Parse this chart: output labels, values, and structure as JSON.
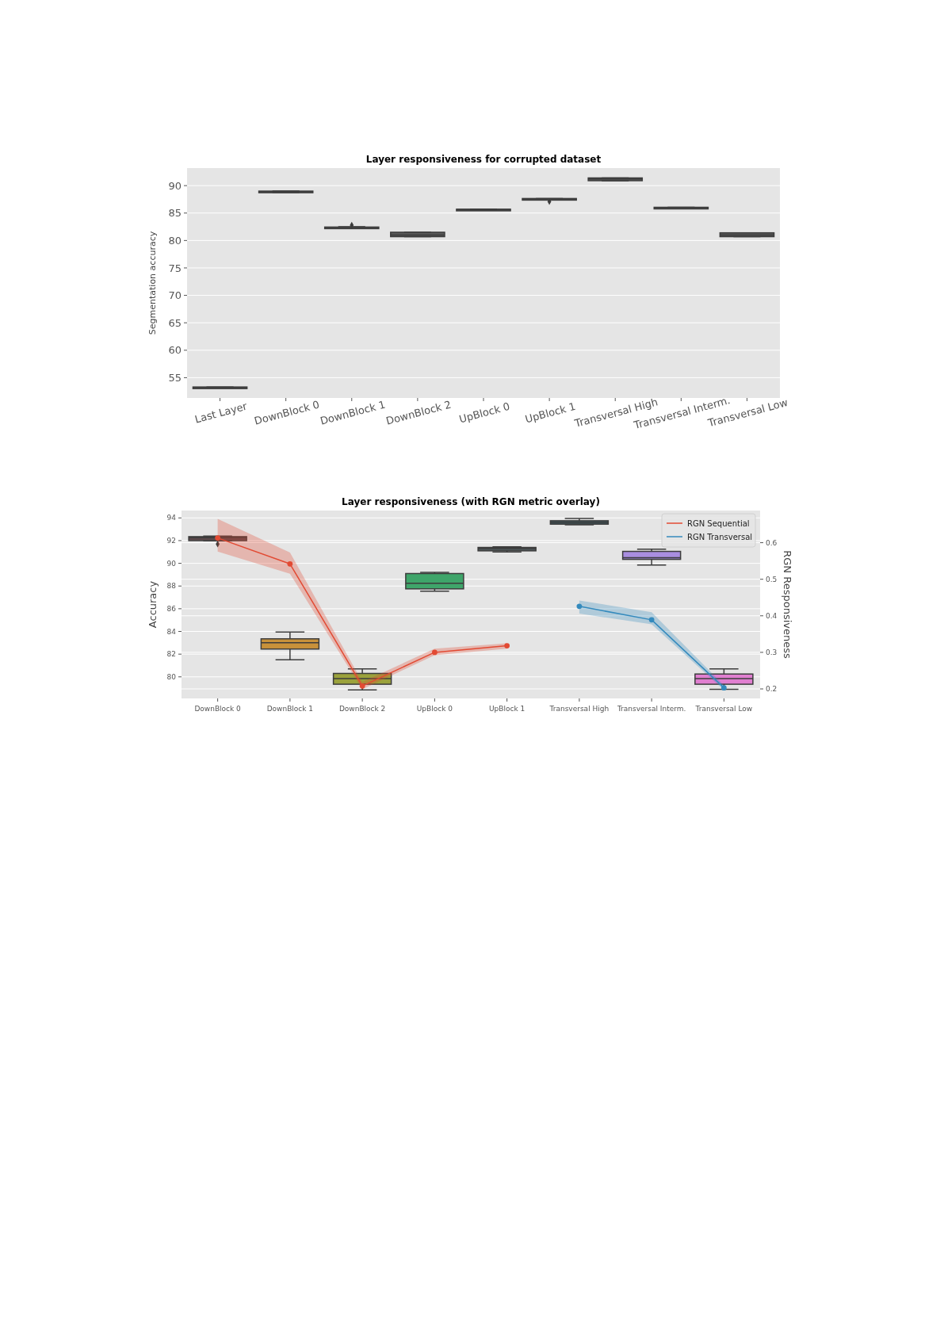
{
  "chart_data": [
    {
      "type": "box",
      "title": "Layer responsiveness for corrupted dataset",
      "ylabel": "Segmentation accuracy",
      "categories": [
        "Last Layer",
        "DownBlock 0",
        "DownBlock 1",
        "DownBlock 2",
        "UpBlock 0",
        "UpBlock 1",
        "Transversal High",
        "Transversal Interm.",
        "Transversal Low"
      ],
      "color": "#5a5a5a",
      "boxes": [
        {
          "low": 53.15,
          "q1": 53.15,
          "median": 53.2,
          "q3": 53.3,
          "high": 53.3
        },
        {
          "low": 88.75,
          "q1": 88.8,
          "median": 88.9,
          "q3": 89.0,
          "high": 89.0
        },
        {
          "low": 82.3,
          "q1": 82.35,
          "median": 82.4,
          "q3": 82.45,
          "high": 82.5,
          "outliers": [
            82.8
          ]
        },
        {
          "low": 80.7,
          "q1": 80.7,
          "median": 81.0,
          "q3": 81.5,
          "high": 81.5
        },
        {
          "low": 85.55,
          "q1": 85.55,
          "median": 85.6,
          "q3": 85.7,
          "high": 85.7
        },
        {
          "low": 87.5,
          "q1": 87.55,
          "median": 87.6,
          "q3": 87.65,
          "high": 87.65,
          "outliers": [
            87.1
          ]
        },
        {
          "low": 90.9,
          "q1": 90.9,
          "median": 91.2,
          "q3": 91.4,
          "high": 91.4
        },
        {
          "low": 85.95,
          "q1": 85.95,
          "median": 86.0,
          "q3": 86.05,
          "high": 86.05
        },
        {
          "low": 80.7,
          "q1": 80.7,
          "median": 81.0,
          "q3": 81.4,
          "high": 81.4
        }
      ],
      "ylim": [
        51.3,
        93.2
      ],
      "yticks": [
        55,
        60,
        65,
        70,
        75,
        80,
        85,
        90
      ],
      "grid": true
    },
    {
      "type": "box",
      "title": "Layer responsiveness (with RGN metric overlay)",
      "ylabel": "Accuracy",
      "y2label": "RGN Responsiveness",
      "categories": [
        "DownBlock 0",
        "DownBlock 1",
        "DownBlock 2",
        "UpBlock 0",
        "UpBlock 1",
        "Transversal High",
        "Transversal Interm.",
        "Transversal Low"
      ],
      "colors": [
        "#5e4a4c",
        "#c8913a",
        "#9ba23c",
        "#3fa56a",
        "#505a5c",
        "#3f5a60",
        "#a98ee0",
        "#e07fd0"
      ],
      "boxes": [
        {
          "low": 92.0,
          "q1": 92.0,
          "median": 92.25,
          "q3": 92.35,
          "high": 92.4,
          "outliers": [
            91.7
          ]
        },
        {
          "low": 81.5,
          "q1": 82.45,
          "median": 83.0,
          "q3": 83.35,
          "high": 83.95
        },
        {
          "low": 78.85,
          "q1": 79.35,
          "median": 79.85,
          "q3": 80.3,
          "high": 80.7
        },
        {
          "low": 87.55,
          "q1": 87.75,
          "median": 88.25,
          "q3": 89.1,
          "high": 89.2
        },
        {
          "low": 91.0,
          "q1": 91.1,
          "median": 91.3,
          "q3": 91.4,
          "high": 91.45
        },
        {
          "low": 93.4,
          "q1": 93.45,
          "median": 93.6,
          "q3": 93.75,
          "high": 93.95
        },
        {
          "low": 89.85,
          "q1": 90.35,
          "median": 90.5,
          "q3": 91.05,
          "high": 91.25
        },
        {
          "low": 78.9,
          "q1": 79.35,
          "median": 79.85,
          "q3": 80.25,
          "high": 80.7
        }
      ],
      "series": [
        {
          "type": "line",
          "axis": "y2",
          "name": "RGN Sequential",
          "color": "#e24a33",
          "values": [
            0.613,
            0.542,
            0.208,
            0.3,
            0.318,
            null,
            null,
            null
          ],
          "lower": [
            0.576,
            0.515,
            0.199,
            0.292,
            0.31,
            null,
            null,
            null
          ],
          "upper": [
            0.665,
            0.573,
            0.219,
            0.31,
            0.325,
            null,
            null,
            null
          ]
        },
        {
          "type": "line",
          "axis": "y2",
          "name": "RGN Transversal",
          "color": "#348abd",
          "values": [
            null,
            null,
            null,
            null,
            null,
            0.426,
            0.389,
            0.203
          ],
          "lower": [
            null,
            null,
            null,
            null,
            null,
            0.406,
            0.377,
            0.197
          ],
          "upper": [
            null,
            null,
            null,
            null,
            null,
            0.442,
            0.41,
            0.21
          ]
        }
      ],
      "ylim": [
        78.1,
        94.65
      ],
      "yticks": [
        80,
        82,
        84,
        86,
        88,
        90,
        92,
        94
      ],
      "y2lim": [
        0.174,
        0.688
      ],
      "y2ticks": [
        0.2,
        0.3,
        0.4,
        0.5,
        0.6
      ],
      "grid": true,
      "legend": "top right",
      "marker": "circle"
    }
  ]
}
